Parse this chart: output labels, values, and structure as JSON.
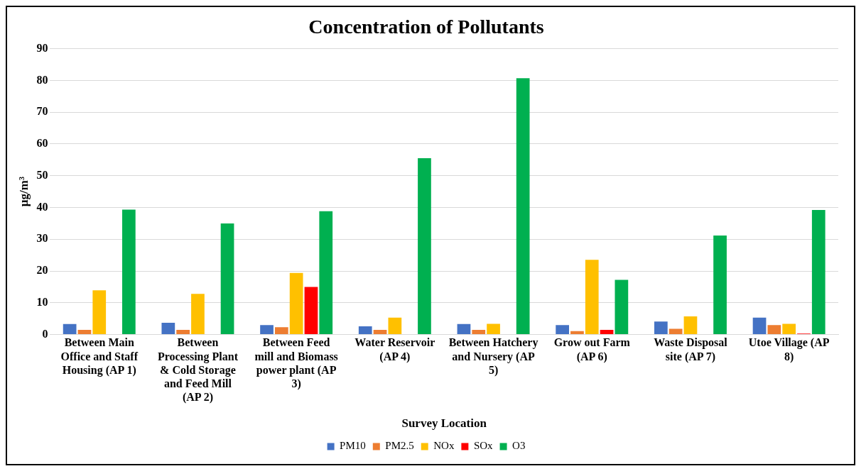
{
  "chart_data": {
    "type": "bar",
    "title": "Concentration of Pollutants",
    "xlabel": "Survey Location",
    "ylabel": "µg/m³",
    "categories": [
      "Between Main Office and Staff Housing (AP 1)",
      "Between Processing Plant & Cold Storage and Feed Mill (AP 2)",
      "Between Feed mill and Biomass power plant (AP 3)",
      "Water Reservoir (AP 4)",
      "Between Hatchery and Nursery (AP 5)",
      "Grow out Farm (AP 6)",
      "Waste Disposal site (AP 7)",
      "Utoe Village (AP 8)"
    ],
    "series": [
      {
        "name": "PM10",
        "color": "#4472c4",
        "values": [
          3.3,
          3.7,
          3.0,
          2.6,
          3.3,
          3.0,
          4.1,
          5.3
        ]
      },
      {
        "name": "PM2.5",
        "color": "#ed7d31",
        "values": [
          1.5,
          1.5,
          2.3,
          1.5,
          1.5,
          1.1,
          1.8,
          3.0
        ]
      },
      {
        "name": "NOx",
        "color": "#ffc000",
        "values": [
          13.9,
          12.8,
          19.4,
          5.3,
          3.4,
          23.5,
          5.7,
          3.4
        ]
      },
      {
        "name": "SOx",
        "color": "#ff0000",
        "values": [
          null,
          null,
          15.0,
          null,
          null,
          1.5,
          null,
          0.3
        ]
      },
      {
        "name": "O3",
        "color": "#00b050",
        "values": [
          39.3,
          35.0,
          38.8,
          55.5,
          80.7,
          17.2,
          31.2,
          39.2
        ]
      }
    ],
    "ylim": [
      0,
      90
    ],
    "yticks": [
      0,
      10,
      20,
      30,
      40,
      50,
      60,
      70,
      80,
      90
    ],
    "grid": "y",
    "legend": "bottom"
  }
}
